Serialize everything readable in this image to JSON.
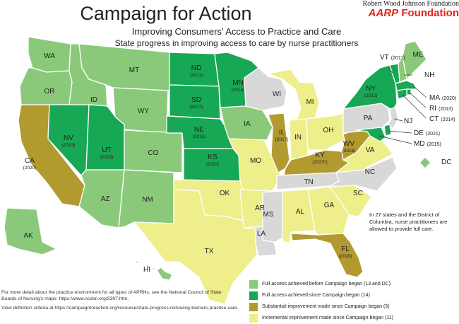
{
  "header": {
    "title": "Campaign for Action",
    "subtitle1": "Improving Consumers’ Access to Practice and Care",
    "subtitle2": "State progress in improving access to care by nurse practitioners",
    "partner1": "Robert Wood Johnson Foundation",
    "partner2_brand": "AARP",
    "partner2_rest": " Foundation"
  },
  "colors": {
    "full_before": "#8bc97a",
    "full_since": "#16a855",
    "substantial": "#b39a2f",
    "incremental": "#eeee8a",
    "none": "#d8d8d8",
    "border": "#ffffff",
    "text": "#222222"
  },
  "states": {
    "WA": {
      "label": "WA",
      "status": "full_before"
    },
    "OR": {
      "label": "OR",
      "status": "full_before"
    },
    "CA": {
      "label": "CA",
      "year": "(2020)",
      "status": "substantial"
    },
    "NV": {
      "label": "NV",
      "year": "(2013)",
      "status": "full_since"
    },
    "ID": {
      "label": "ID",
      "status": "full_before"
    },
    "MT": {
      "label": "MT",
      "status": "full_before"
    },
    "WY": {
      "label": "WY",
      "status": "full_before"
    },
    "UT": {
      "label": "UT",
      "year": "(2023)",
      "status": "full_since"
    },
    "AZ": {
      "label": "AZ",
      "status": "full_before"
    },
    "CO": {
      "label": "CO",
      "status": "full_before"
    },
    "NM": {
      "label": "NM",
      "status": "full_before"
    },
    "ND": {
      "label": "ND",
      "year": "(2011)",
      "status": "full_since"
    },
    "SD": {
      "label": "SD",
      "year": "(2017)",
      "status": "full_since"
    },
    "NE": {
      "label": "NE",
      "year": "(2015)",
      "status": "full_since"
    },
    "KS": {
      "label": "KS",
      "year": "(2022)",
      "status": "full_since"
    },
    "OK": {
      "label": "OK",
      "status": "incremental"
    },
    "TX": {
      "label": "TX",
      "status": "incremental"
    },
    "MN": {
      "label": "MN",
      "year": "(2014)",
      "status": "full_since"
    },
    "IA": {
      "label": "IA",
      "status": "full_before"
    },
    "MO": {
      "label": "MO",
      "status": "incremental"
    },
    "AR": {
      "label": "AR",
      "status": "incremental"
    },
    "LA": {
      "label": "LA",
      "status": "none"
    },
    "WI": {
      "label": "WI",
      "status": "none"
    },
    "IL": {
      "label": "IL",
      "year": "(2017)",
      "status": "substantial"
    },
    "MI": {
      "label": "MI",
      "status": "incremental"
    },
    "IN": {
      "label": "IN",
      "status": "incremental"
    },
    "OH": {
      "label": "OH",
      "status": "incremental"
    },
    "KY": {
      "label": "KY",
      "year": "(2023*)",
      "status": "substantial"
    },
    "TN": {
      "label": "TN",
      "status": "none"
    },
    "MS": {
      "label": "MS",
      "status": "none"
    },
    "AL": {
      "label": "AL",
      "status": "incremental"
    },
    "GA": {
      "label": "GA",
      "status": "incremental"
    },
    "FL": {
      "label": "FL",
      "year": "(2020)",
      "status": "substantial"
    },
    "SC": {
      "label": "SC",
      "status": "incremental"
    },
    "NC": {
      "label": "NC",
      "status": "none"
    },
    "VA": {
      "label": "VA",
      "status": "incremental"
    },
    "WV": {
      "label": "WV",
      "year": "(2016)",
      "status": "substantial"
    },
    "PA": {
      "label": "PA",
      "status": "none"
    },
    "NY": {
      "label": "NY",
      "year": "(2022)",
      "status": "full_since"
    },
    "VT": {
      "label": "VT",
      "year": "(2011)",
      "status": "full_since"
    },
    "NH": {
      "label": "NH",
      "status": "full_before"
    },
    "ME": {
      "label": "ME",
      "status": "full_before"
    },
    "MA": {
      "label": "MA",
      "year": "(2020)",
      "status": "full_since"
    },
    "RI": {
      "label": "RI",
      "year": "(2013)",
      "status": "full_since"
    },
    "CT": {
      "label": "CT",
      "year": "(2014)",
      "status": "full_since"
    },
    "NJ": {
      "label": "NJ",
      "status": "none"
    },
    "DE": {
      "label": "DE",
      "year": "(2021)",
      "status": "full_since"
    },
    "MD": {
      "label": "MD",
      "year": "(2015)",
      "status": "full_since"
    },
    "DC": {
      "label": "DC",
      "status": "full_before"
    },
    "AK": {
      "label": "AK",
      "status": "full_before"
    },
    "HI": {
      "label": "HI",
      "status": "full_before"
    }
  },
  "note": "In 27 states and the District of Columbia, nurse practitioners are allowed to provide full care.",
  "footnotes": {
    "line1": "For more detail about the practice environment for all types of APRNs, see the National Council of State",
    "line2": "Boards of Nursing’s maps: https://www.ncsbn.org/5397.htm.",
    "line3": "View definition criteria at https://campaignforaction.org/resource/state-progress-removing-barriers-practice-care."
  },
  "legend": [
    {
      "status": "full_before",
      "label": "Full access achieved before Campaign began (13 and DC)"
    },
    {
      "status": "full_since",
      "label": "Full access achieved since Campaign began (14)"
    },
    {
      "status": "substantial",
      "label": "Substantial improvement made since Campaign began (5)"
    },
    {
      "status": "incremental",
      "label": "Incremental improvement made since Campaign began (11)"
    }
  ]
}
